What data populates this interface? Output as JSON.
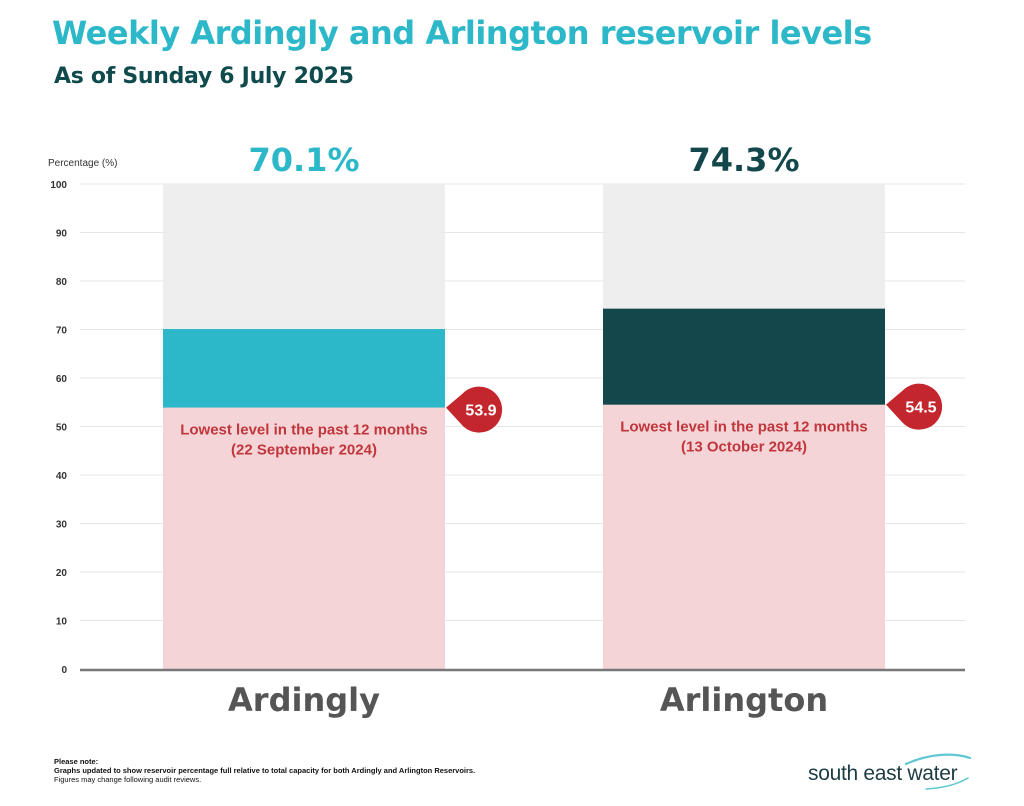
{
  "header": {
    "title": "Weekly Ardingly and Arlington reservoir levels",
    "subtitle": "As of Sunday 6 July 2025"
  },
  "chart_data": {
    "type": "bar",
    "ylabel": "Percentage (%)",
    "ylim": [
      0,
      100
    ],
    "yticks": [
      0,
      10,
      20,
      30,
      40,
      50,
      60,
      70,
      80,
      90,
      100
    ],
    "grid": true,
    "categories": [
      "Ardingly",
      "Arlington"
    ],
    "series": [
      {
        "name": "Ardingly",
        "value": 70.1,
        "value_label": "70.1%",
        "color": "#2cb8c8",
        "lowest_value": 53.9,
        "lowest_label": "53.9",
        "lowest_text_line1": "Lowest level in the past 12 months",
        "lowest_text_line2": "(22 September 2024)"
      },
      {
        "name": "Arlington",
        "value": 74.3,
        "value_label": "74.3%",
        "color": "#13474b",
        "lowest_value": 54.5,
        "lowest_label": "54.5",
        "lowest_text_line1": "Lowest level in the past 12 months",
        "lowest_text_line2": "(13 October 2024)"
      }
    ],
    "colors": {
      "capacity_background": "#eeeeee",
      "lowest_fill": "#f4d4d6",
      "lowest_text": "#c0363c",
      "lowest_marker": "#c3262d",
      "category_label": "#555555",
      "axis": "#777777"
    }
  },
  "footnote": {
    "heading": "Please note:",
    "line1": "Graphs updated to show reservoir percentage full relative to total capacity for both Ardingly and Arlington Reservoirs.",
    "line2": "Figures may change following audit reviews."
  },
  "logo": {
    "text": "south east water",
    "wave_color": "#5fc7d3",
    "text_color": "#1d3c44"
  }
}
